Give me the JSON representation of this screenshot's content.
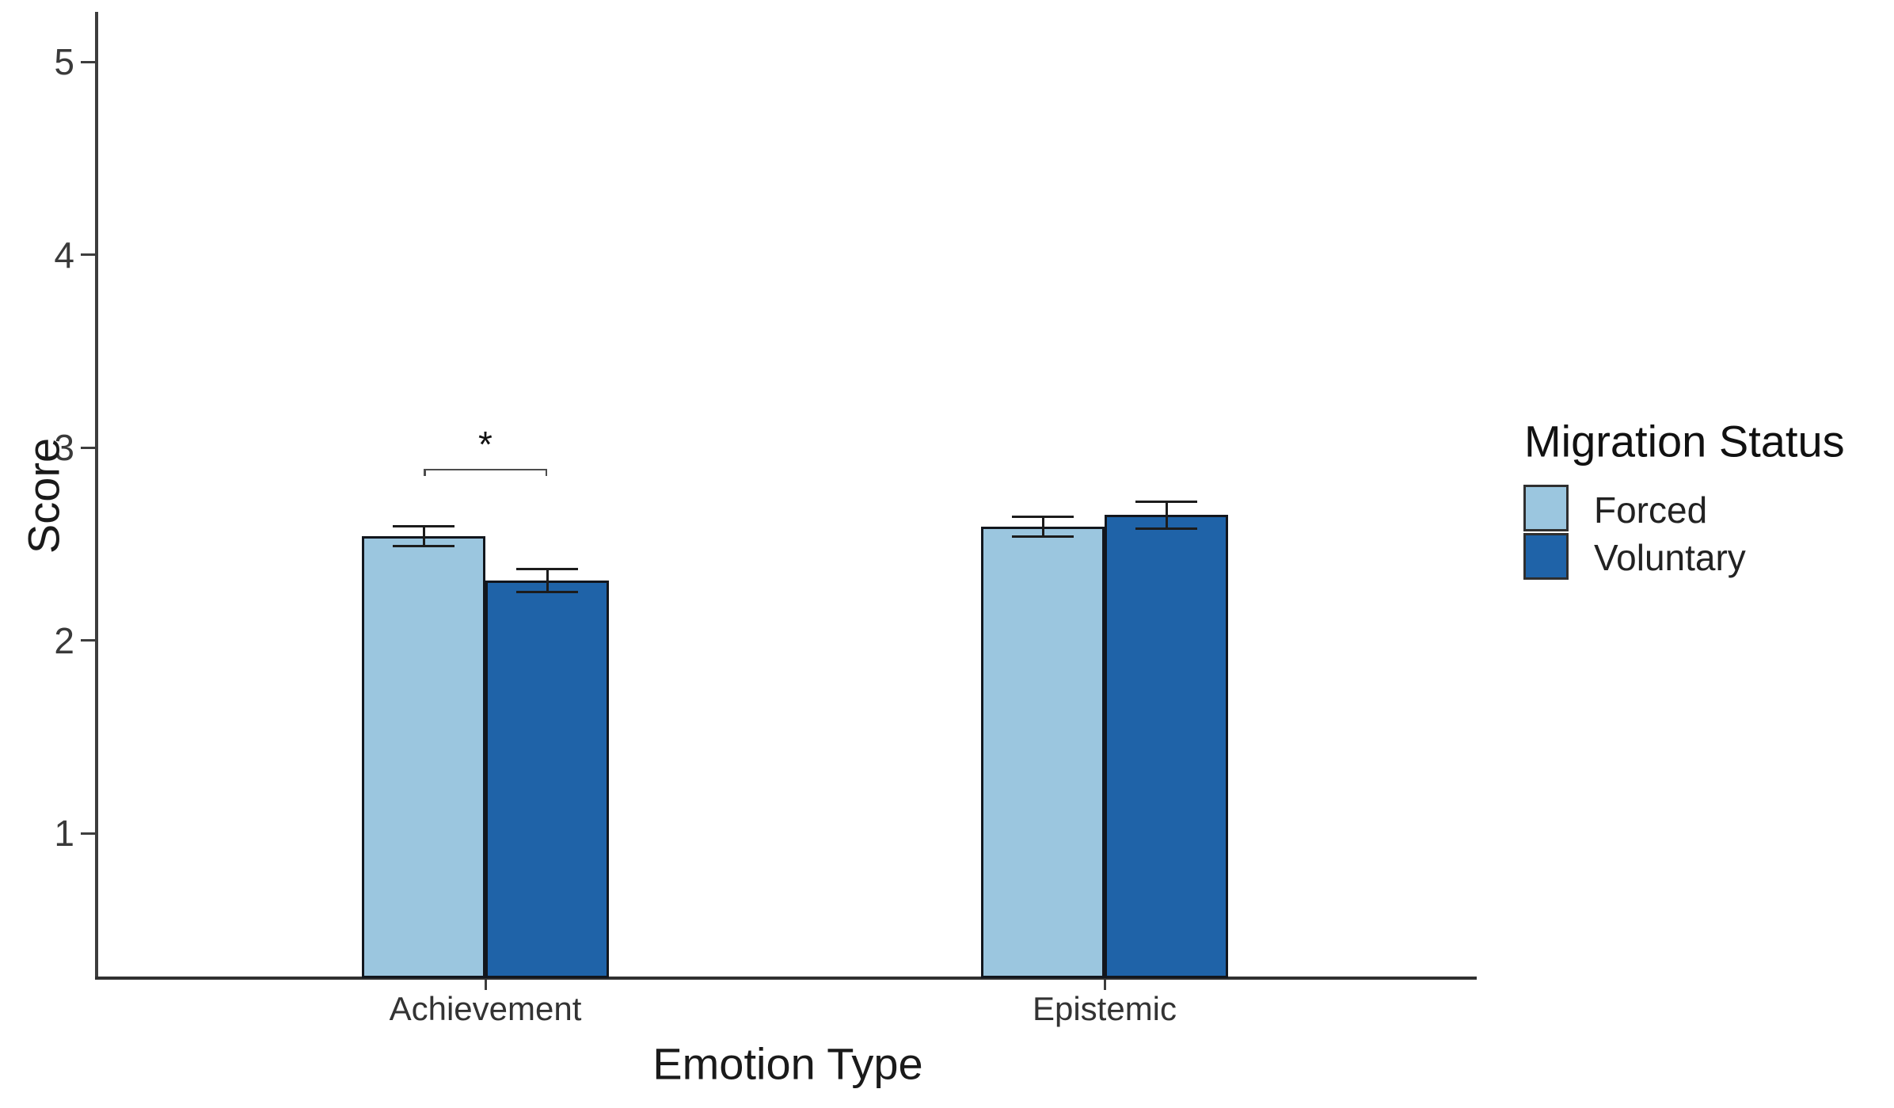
{
  "chart_data": {
    "type": "bar",
    "title": "",
    "xlabel": "Emotion Type",
    "ylabel": "Score",
    "categories": [
      "Achievement",
      "Epistemic"
    ],
    "series": [
      {
        "name": "Forced",
        "color": "#9BC6DF",
        "values": [
          2.54,
          2.59
        ],
        "errors": [
          0.05,
          0.05
        ]
      },
      {
        "name": "Voluntary",
        "color": "#1F63A8",
        "values": [
          2.31,
          2.65
        ],
        "errors": [
          0.06,
          0.07
        ]
      }
    ],
    "y_ticks": [
      "1",
      "2",
      "3",
      "4",
      "5"
    ],
    "ylim": [
      0.25,
      5.2
    ],
    "grid": "off",
    "bar_outline_color": "#12161d",
    "error_bar_color": "#1c1c1c",
    "axis_color": "#3d3d3d",
    "legend": {
      "title": "Migration Status",
      "position": "right",
      "entries": [
        "Forced",
        "Voluntary"
      ]
    },
    "annotation": {
      "kind": "significance-bracket",
      "label": "*",
      "category": "Achievement",
      "between": [
        "Forced",
        "Voluntary"
      ],
      "y_value": 2.89
    }
  }
}
